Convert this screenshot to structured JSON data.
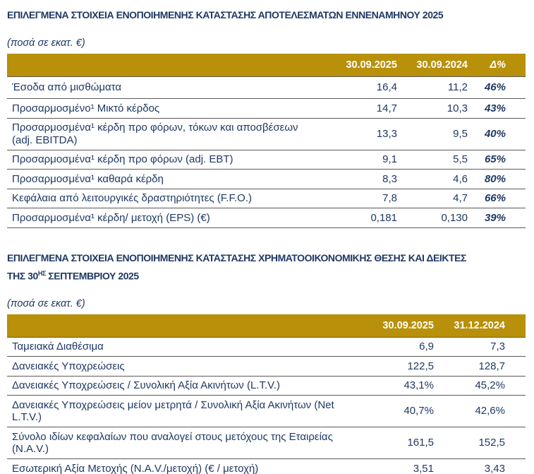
{
  "theme": {
    "accent_gold": "#B8900A",
    "text_navy": "#1F3864",
    "header_text": "#FFFFFF",
    "row_border": "#5a5a5a"
  },
  "section1": {
    "title": "ΕΠΙΛΕΓΜΕΝΑ ΣΤΟΙΧΕΙΑ ΕΝΟΠΟΙΗΜΕΝΗΣ ΚΑΤΑΣΤΑΣΗΣ ΑΠΟΤΕΛΕΣΜΑΤΩΝ ΕΝΝΕΝΑΜΗΝΟΥ 2025",
    "units_note": "(ποσά σε εκατ. €)",
    "table": {
      "col_2025": "30.09.2025",
      "col_2024": "30.09.2024",
      "col_delta": "Δ%",
      "rows": [
        {
          "label": "Έσοδα από μισθώματα",
          "v2025": "16,4",
          "v2024": "11,2",
          "delta": "46%"
        },
        {
          "label": "Προσαρμοσμένο¹ Μικτό κέρδος",
          "v2025": "14,7",
          "v2024": "10,3",
          "delta": "43%"
        },
        {
          "label": "Προσαρμοσμένα¹ κέρδη προ φόρων, τόκων και αποσβέσεων (adj. EBITDA)",
          "v2025": "13,3",
          "v2024": "9,5",
          "delta": "40%"
        },
        {
          "label": "Προσαρμοσμένα¹ κέρδη προ φόρων (adj. EBT)",
          "v2025": "9,1",
          "v2024": "5,5",
          "delta": "65%"
        },
        {
          "label": "Προσαρμοσμένα¹ καθαρά κέρδη",
          "v2025": "8,3",
          "v2024": "4,6",
          "delta": "80%"
        },
        {
          "label": "Κεφάλαια από λειτουργικές δραστηριότητες (F.F.O.)",
          "v2025": "7,8",
          "v2024": "4,7",
          "delta": "66%"
        },
        {
          "label": "Προσαρμοσμένα¹ κέρδη/ μετοχή (EPS) (€)",
          "v2025": "0,181",
          "v2024": "0,130",
          "delta": "39%"
        }
      ]
    }
  },
  "section2": {
    "title_line1": "ΕΠΙΛΕΓΜΕΝΑ ΣΤΟΙΧΕΙΑ ΕΝΟΠΟΙΗΜΕΝΗΣ ΚΑΤΑΣΤΑΣΗΣ ΧΡΗΜΑΤΟΟΙΚΟΝΟΜΙΚΗΣ ΘΕΣΗΣ ΚΑΙ ΔΕΙΚΤΕΣ",
    "title_line2_pre": "ΤΗΣ 30",
    "title_line2_sup": "ΗΣ",
    "title_line2_post": "ΣΕΠΤΕΜΒΡΙΟΥ 2025",
    "units_note": "(ποσά σε εκατ. €)",
    "table": {
      "col_2025": "30.09.2025",
      "col_2024": "31.12.2024",
      "rows": [
        {
          "label": "Ταμειακά Διαθέσιμα",
          "v2025": "6,9",
          "v2024": "7,3"
        },
        {
          "label": "Δανειακές Υποχρεώσεις",
          "v2025": "122,5",
          "v2024": "128,7"
        },
        {
          "label": "Δανειακές Υποχρεώσεις / Συνολική Αξία Ακινήτων (L.T.V.)",
          "v2025": "43,1%",
          "v2024": "45,2%"
        },
        {
          "label": "Δανειακές Υποχρεώσεις μείον μετρητά / Συνολική Αξία Ακινήτων (Net L.T.V.)",
          "v2025": "40,7%",
          "v2024": "42,6%"
        },
        {
          "label": "Σύνολο ιδίων κεφαλαίων που αναλογεί στους μετόχους της Εταιρείας (N.A.V.)",
          "v2025": "161,5",
          "v2024": "152,5"
        },
        {
          "label": "Εσωτερική Αξία Μετοχής (N.A.V./μετοχή) (€ / μετοχή)",
          "v2025": "3,51",
          "v2024": "3,43"
        }
      ]
    }
  }
}
